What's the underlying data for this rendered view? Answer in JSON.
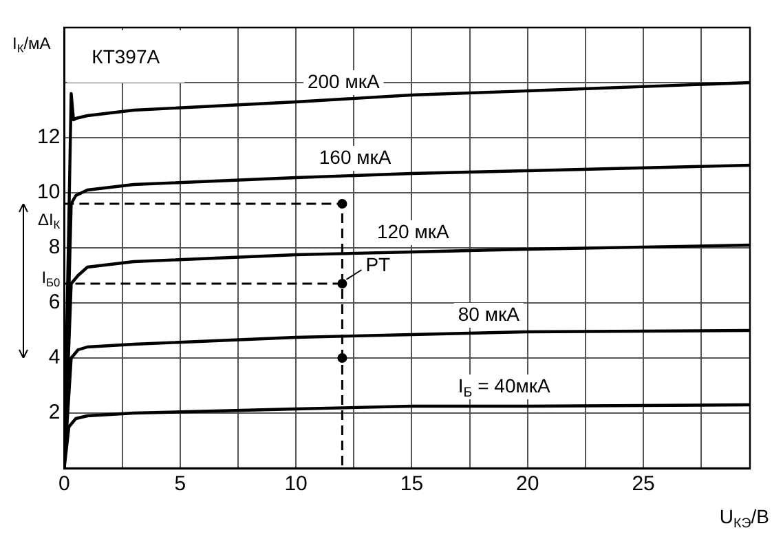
{
  "chart_data": {
    "type": "line",
    "title": "КТ397А",
    "xlabel": "U$_{КЭ}$/В",
    "ylabel": "I$_{К}$/мА",
    "xlim": [
      0,
      29.6
    ],
    "xticks": [
      0,
      {
        "value": 2.5,
        "label": null
      },
      5,
      {
        "value": 7.5,
        "label": null
      },
      10,
      {
        "value": 12.5,
        "label": null
      },
      15,
      {
        "value": 17.5,
        "label": null
      },
      20,
      {
        "value": 22.5,
        "label": null
      },
      25,
      {
        "value": 27.5,
        "label": null
      }
    ],
    "ylim": [
      0,
      16
    ],
    "yticks": [
      {
        "value": 0,
        "label": null
      },
      2,
      4,
      6,
      8,
      10,
      12,
      {
        "value": 14,
        "label": null
      }
    ],
    "grid": true,
    "legend": false,
    "marker": "none",
    "series": [
      {
        "name": "200 мкА",
        "color": "#000000",
        "x": [
          0,
          0.3,
          0.4,
          0.5,
          1,
          3,
          10,
          15,
          20,
          29.6
        ],
        "values": [
          0,
          13.6,
          12.65,
          12.7,
          12.8,
          13.0,
          13.3,
          13.55,
          13.7,
          14.0
        ]
      },
      {
        "name": "160 мкА",
        "color": "#000000",
        "x": [
          0,
          0.3,
          0.5,
          1,
          3,
          10,
          15,
          20,
          29.6
        ],
        "values": [
          0,
          9.6,
          9.9,
          10.1,
          10.3,
          10.55,
          10.7,
          10.8,
          11.0
        ]
      },
      {
        "name": "120 мкА",
        "color": "#000000",
        "x": [
          0,
          0.3,
          0.6,
          1,
          3,
          10,
          15,
          20,
          29.6
        ],
        "values": [
          0,
          6.7,
          7.0,
          7.3,
          7.5,
          7.75,
          7.85,
          7.95,
          8.1
        ]
      },
      {
        "name": "80 мкА",
        "color": "#000000",
        "x": [
          0,
          0.3,
          0.6,
          1,
          3,
          10,
          15,
          20,
          29.6
        ],
        "values": [
          0,
          4.0,
          4.3,
          4.4,
          4.5,
          4.75,
          4.85,
          4.95,
          5.0
        ]
      },
      {
        "name": "I$_{Б}$ = 40мкА",
        "color": "#000000",
        "x": [
          0,
          0.2,
          0.5,
          1,
          3,
          10,
          15,
          20,
          29.6
        ],
        "values": [
          0,
          1.5,
          1.8,
          1.9,
          2.0,
          2.15,
          2.25,
          2.25,
          2.3
        ]
      },
      {
        "type": "line",
        "line_style": "dashed",
        "color": "#000000",
        "x": [
          0,
          12,
          12,
          12,
          0
        ],
        "values": [
          9.6,
          9.6,
          0,
          6.7,
          6.7
        ]
      },
      {
        "type": "scatter",
        "marker": "circle",
        "color": "#000000",
        "x": [
          12,
          12,
          12
        ],
        "values": [
          9.6,
          6.7,
          4
        ]
      }
    ],
    "annotations": [
      "ΔI$_{К}$",
      "I$_{Б0}$",
      {
        "text": "PT",
        "x": 12,
        "y": 6.7
      }
    ]
  }
}
